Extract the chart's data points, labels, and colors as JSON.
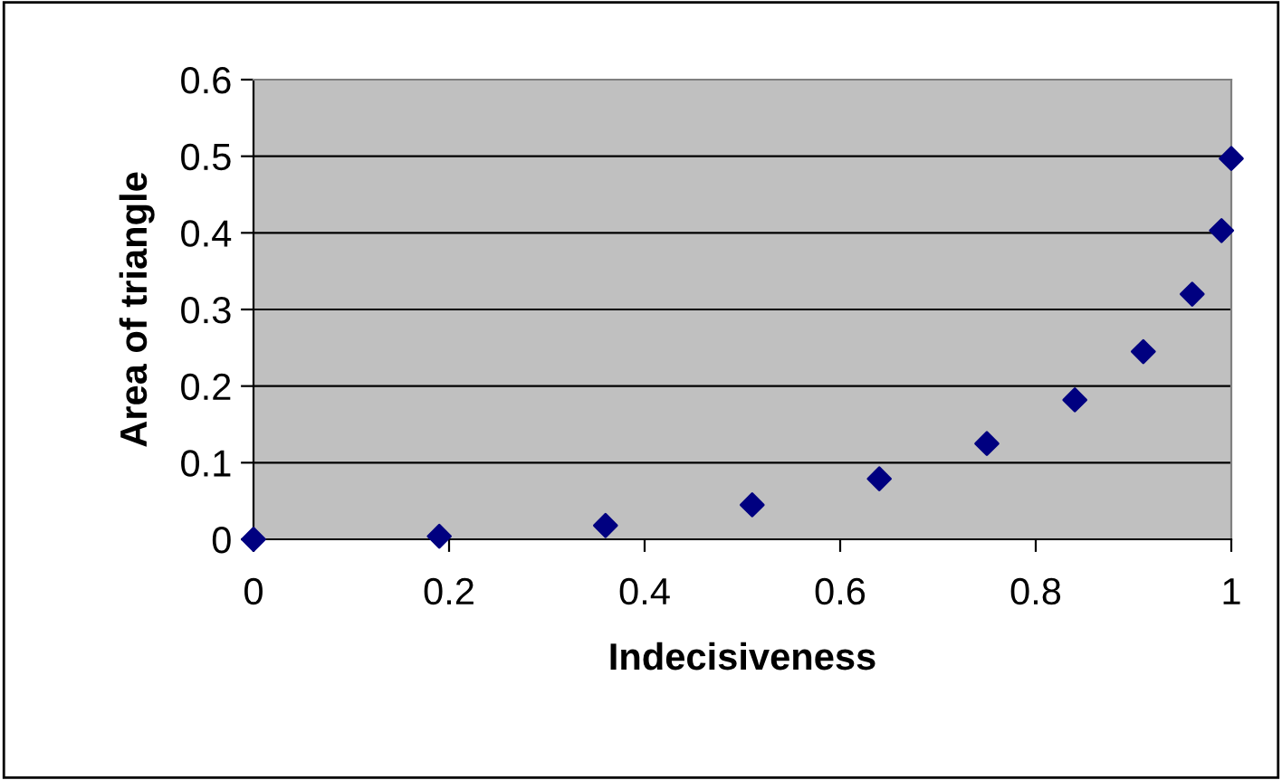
{
  "chart_data": {
    "type": "scatter",
    "xlabel": "Indecisiveness",
    "ylabel": "Area of triangle",
    "x": [
      0,
      0.19,
      0.36,
      0.51,
      0.64,
      0.75,
      0.84,
      0.91,
      0.96,
      0.99,
      1.0
    ],
    "series": [
      {
        "color": "#000080",
        "values": [
          0,
          0.004,
          0.018,
          0.045,
          0.079,
          0.125,
          0.182,
          0.245,
          0.32,
          0.403,
          0.497
        ]
      }
    ],
    "xlim": [
      0,
      1
    ],
    "xticks": [
      0,
      0.2,
      0.4,
      0.6,
      0.8,
      1
    ],
    "ylim": [
      0,
      0.6
    ],
    "yticks": [
      0,
      0.1,
      0.2,
      0.3,
      0.4,
      0.5,
      0.6
    ],
    "grid": "y",
    "marker": "diamond",
    "legend": false
  }
}
